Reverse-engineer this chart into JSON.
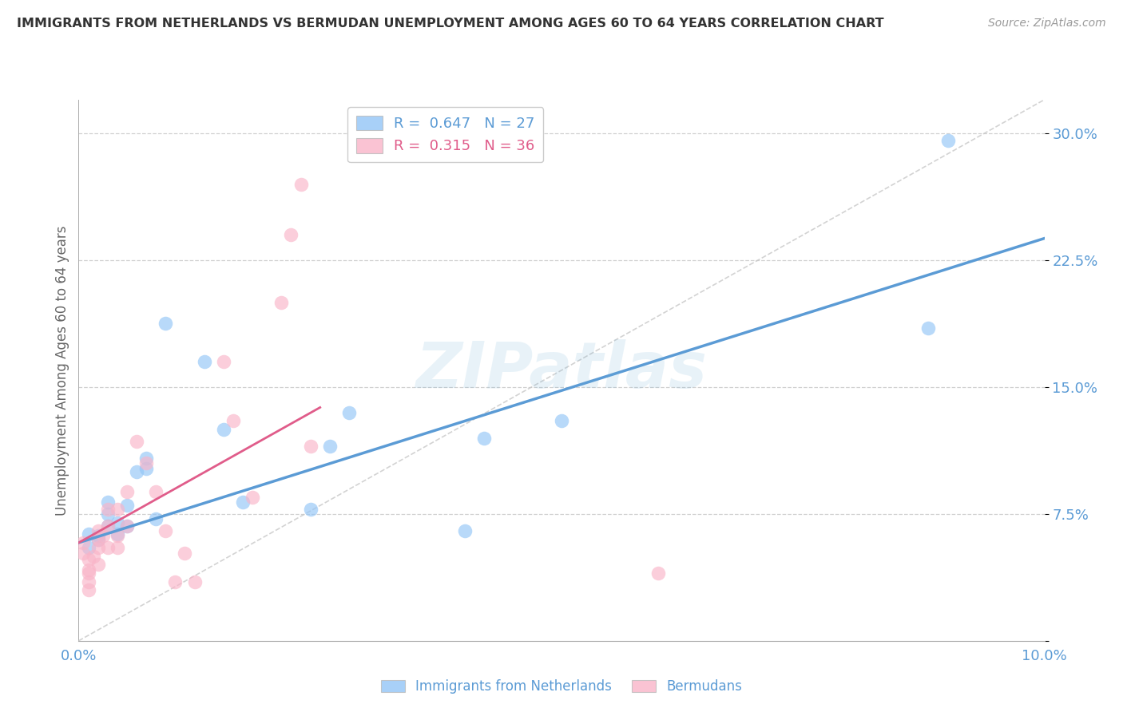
{
  "title": "IMMIGRANTS FROM NETHERLANDS VS BERMUDAN UNEMPLOYMENT AMONG AGES 60 TO 64 YEARS CORRELATION CHART",
  "source": "Source: ZipAtlas.com",
  "ylabel": "Unemployment Among Ages 60 to 64 years",
  "xlim": [
    0.0,
    0.1
  ],
  "ylim": [
    0.0,
    0.32
  ],
  "xticks": [
    0.0,
    0.02,
    0.04,
    0.06,
    0.08,
    0.1
  ],
  "xticklabels": [
    "0.0%",
    "",
    "",
    "",
    "",
    "10.0%"
  ],
  "yticks": [
    0.0,
    0.075,
    0.15,
    0.225,
    0.3
  ],
  "yticklabels": [
    "",
    "7.5%",
    "15.0%",
    "22.5%",
    "30.0%"
  ],
  "legend_entry1": "R =  0.647   N = 27",
  "legend_entry2": "R =  0.315   N = 36",
  "legend_labels": [
    "Immigrants from Netherlands",
    "Bermudans"
  ],
  "blue_color": "#92c5f7",
  "pink_color": "#f9b4c8",
  "blue_line_color": "#5b9bd5",
  "pink_line_color": "#e05c8a",
  "axis_color": "#5b9bd5",
  "grid_color": "#d0d0d0",
  "blue_line_x0": 0.0,
  "blue_line_y0": 0.058,
  "blue_line_x1": 0.1,
  "blue_line_y1": 0.238,
  "pink_line_x0": 0.0,
  "pink_line_y0": 0.058,
  "pink_line_x1": 0.025,
  "pink_line_y1": 0.138,
  "blue_scatter_x": [
    0.001,
    0.001,
    0.002,
    0.002,
    0.003,
    0.003,
    0.003,
    0.004,
    0.004,
    0.005,
    0.005,
    0.006,
    0.007,
    0.007,
    0.008,
    0.009,
    0.013,
    0.015,
    0.017,
    0.024,
    0.026,
    0.028,
    0.04,
    0.042,
    0.05,
    0.088,
    0.09
  ],
  "blue_scatter_y": [
    0.055,
    0.063,
    0.06,
    0.062,
    0.068,
    0.075,
    0.082,
    0.063,
    0.07,
    0.068,
    0.08,
    0.1,
    0.102,
    0.108,
    0.072,
    0.188,
    0.165,
    0.125,
    0.082,
    0.078,
    0.115,
    0.135,
    0.065,
    0.12,
    0.13,
    0.185,
    0.296
  ],
  "pink_scatter_x": [
    0.0005,
    0.0005,
    0.001,
    0.001,
    0.001,
    0.001,
    0.001,
    0.0015,
    0.002,
    0.002,
    0.002,
    0.002,
    0.0025,
    0.003,
    0.003,
    0.003,
    0.004,
    0.004,
    0.004,
    0.005,
    0.005,
    0.006,
    0.007,
    0.008,
    0.009,
    0.01,
    0.011,
    0.012,
    0.015,
    0.016,
    0.018,
    0.021,
    0.022,
    0.023,
    0.024,
    0.06
  ],
  "pink_scatter_y": [
    0.058,
    0.052,
    0.048,
    0.042,
    0.04,
    0.035,
    0.03,
    0.05,
    0.065,
    0.06,
    0.055,
    0.045,
    0.062,
    0.078,
    0.068,
    0.055,
    0.078,
    0.062,
    0.055,
    0.088,
    0.068,
    0.118,
    0.105,
    0.088,
    0.065,
    0.035,
    0.052,
    0.035,
    0.165,
    0.13,
    0.085,
    0.2,
    0.24,
    0.27,
    0.115,
    0.04
  ],
  "watermark": "ZIPatlas",
  "bg_color": "#ffffff"
}
